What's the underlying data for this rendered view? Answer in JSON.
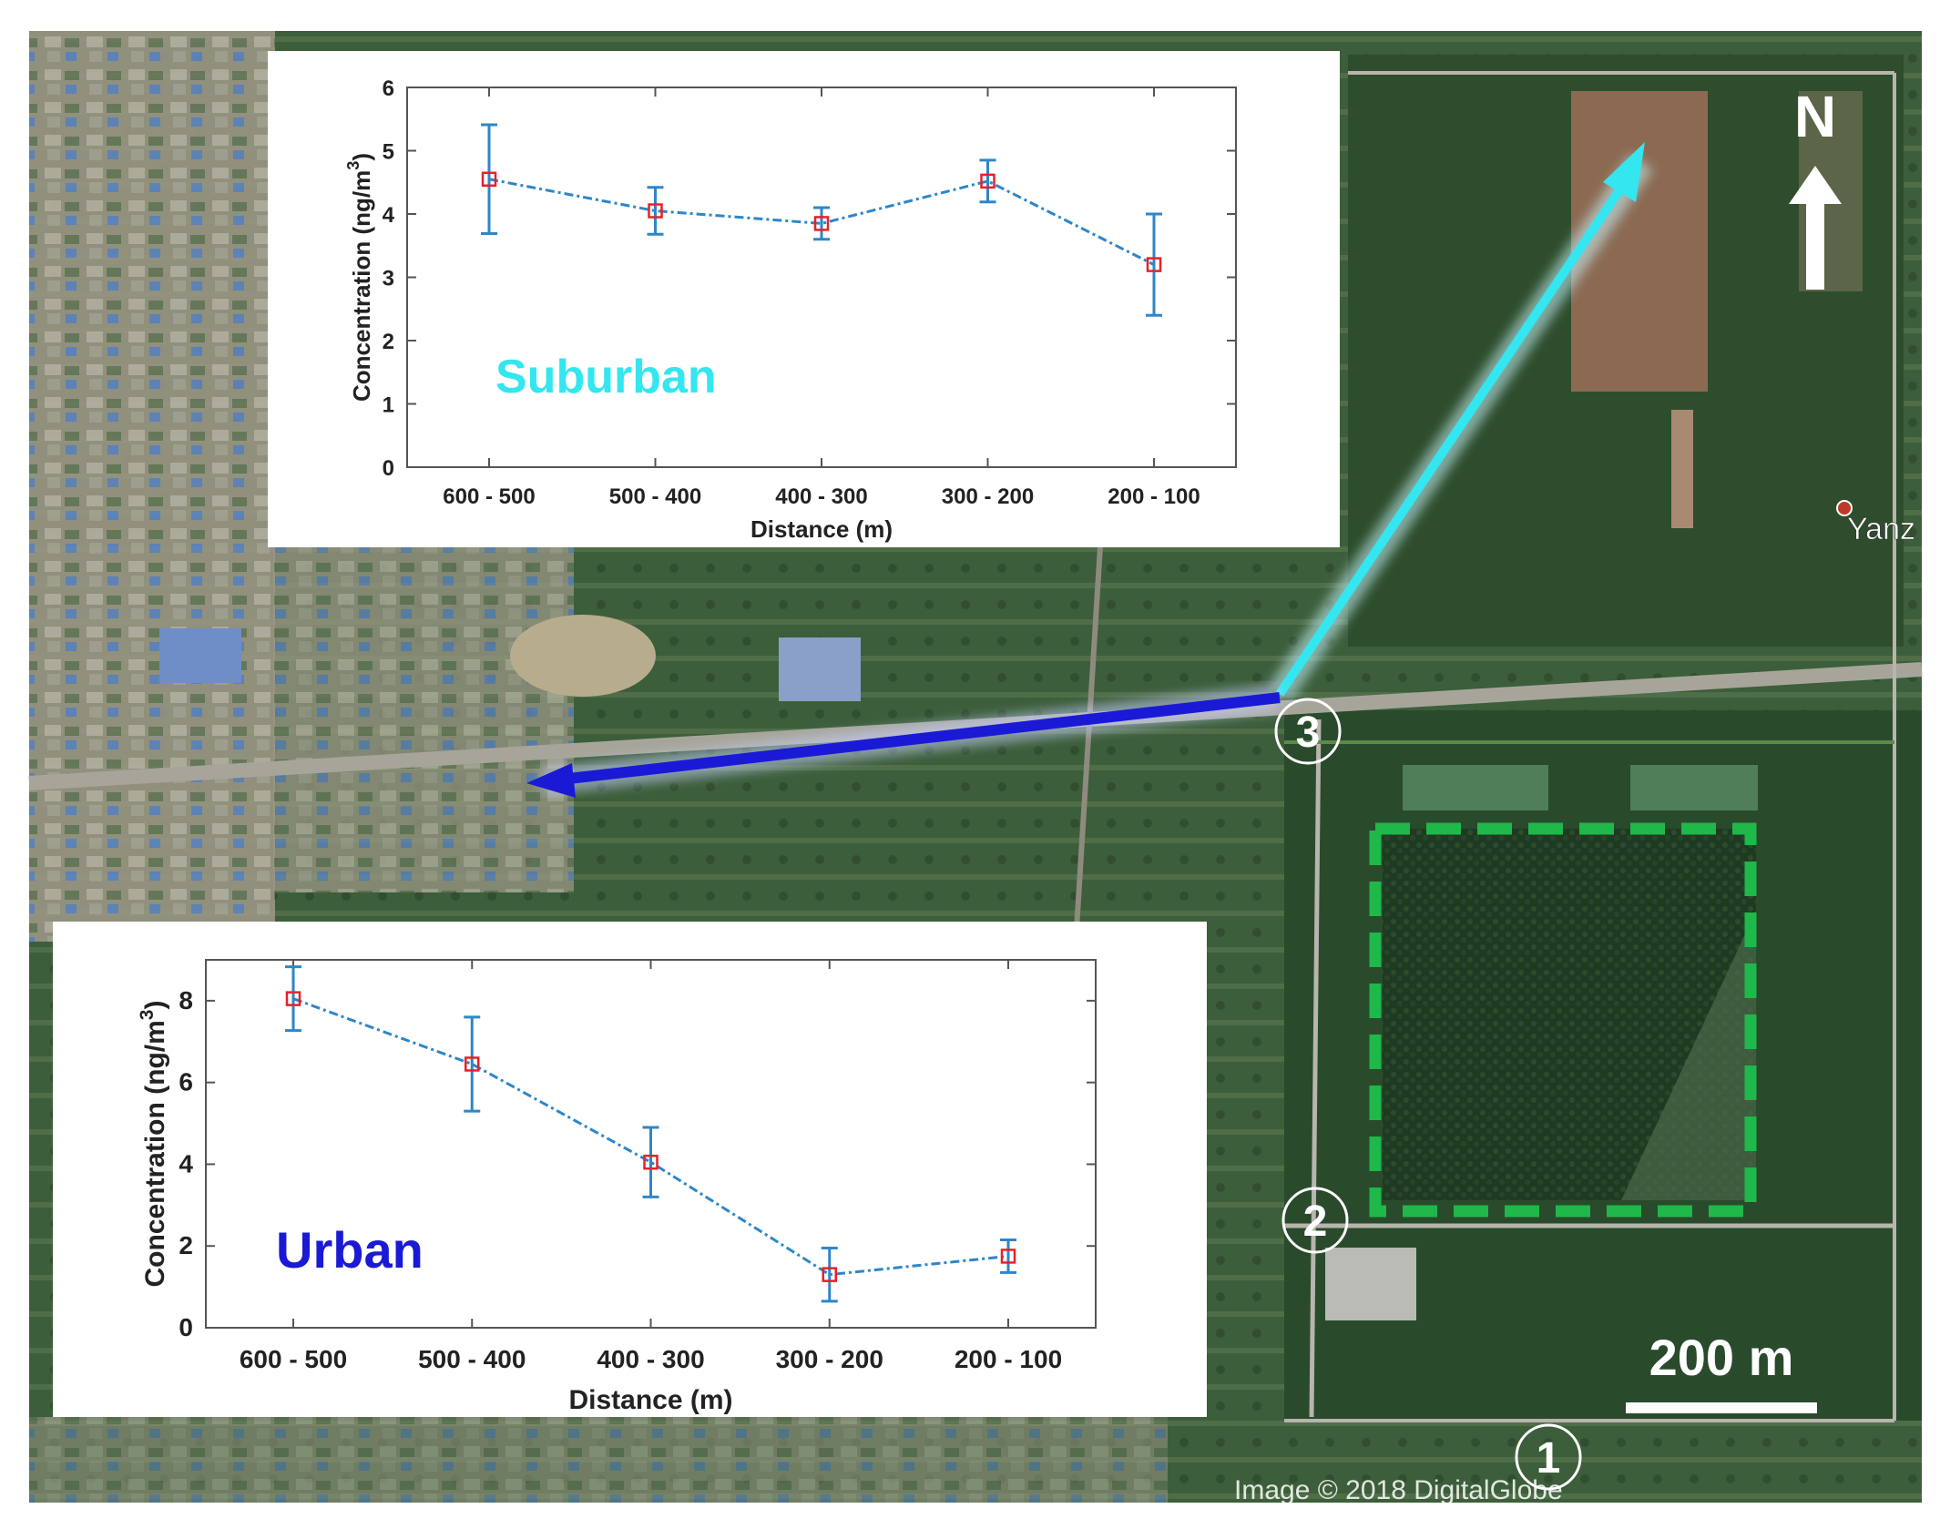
{
  "map": {
    "north_label": "N",
    "scale_label": "200 m",
    "credit": "Image © 2018 DigitalGlobe",
    "place_label": "Yanz",
    "site_markers": [
      "1",
      "2",
      "3"
    ],
    "colors": {
      "suburban_arrow": "#33e6f0",
      "urban_arrow": "#1a1ad6",
      "study_area_outline": "#1fb84a",
      "north_arrow": "#ffffff"
    }
  },
  "chart_data": [
    {
      "type": "line",
      "id": "suburban",
      "annotation": "Suburban",
      "annotation_color": "#33e6f0",
      "xlabel": "Distance (m)",
      "ylabel": "Concentration (ng/m",
      "ylabel_sup": "3",
      "ylabel_close": ")",
      "categories": [
        "600 - 500",
        "500 - 400",
        "400 - 300",
        "300 - 200",
        "200 - 100"
      ],
      "values": [
        4.55,
        4.05,
        3.85,
        4.52,
        3.2
      ],
      "error": [
        0.86,
        0.37,
        0.25,
        0.33,
        0.8
      ],
      "ylim": [
        0,
        6
      ],
      "yticks": [
        0,
        1,
        2,
        3,
        4,
        5,
        6
      ],
      "grid": false,
      "line_color": "#2e86c8",
      "marker_color": "#e8202a"
    },
    {
      "type": "line",
      "id": "urban",
      "annotation": "Urban",
      "annotation_color": "#1a1ad6",
      "xlabel": "Distance (m)",
      "ylabel": "Concentration (ng/m",
      "ylabel_sup": "3",
      "ylabel_close": ")",
      "categories": [
        "600 - 500",
        "500 - 400",
        "400 - 300",
        "300 - 200",
        "200 - 100"
      ],
      "values": [
        8.05,
        6.45,
        4.05,
        1.3,
        1.75
      ],
      "error": [
        0.78,
        1.15,
        0.85,
        0.65,
        0.4
      ],
      "ylim": [
        0,
        9
      ],
      "yticks": [
        0,
        2,
        4,
        6,
        8
      ],
      "grid": false,
      "line_color": "#2e86c8",
      "marker_color": "#e8202a"
    }
  ]
}
